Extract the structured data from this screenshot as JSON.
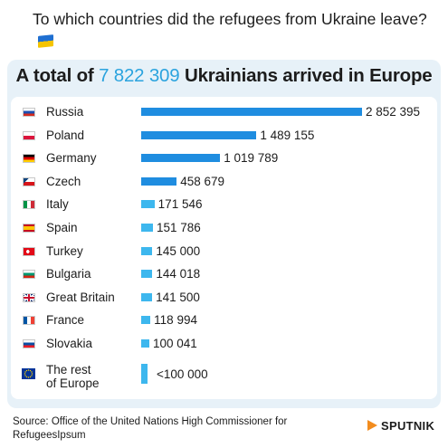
{
  "header": {
    "question": "To which countries did the refugees from Ukraine leave?"
  },
  "summary": {
    "prefix": "A total of",
    "total": "7 822 309",
    "suffix": "Ukrainians arrived in Europe"
  },
  "chart_data": {
    "type": "bar",
    "orientation": "horizontal",
    "categories": [
      "Russia",
      "Poland",
      "Germany",
      "Czech",
      "Italy",
      "Spain",
      "Turkey",
      "Bulgaria",
      "Great Britain",
      "France",
      "Slovakia",
      "The rest of Europe"
    ],
    "values": [
      2852395,
      1489155,
      1019789,
      458679,
      171546,
      151786,
      145000,
      144018,
      141500,
      118994,
      100041,
      100000
    ],
    "value_labels": [
      "2 852 395",
      "1 489 155",
      "1 019 789",
      "458 679",
      "171 546",
      "151 786",
      "145 000",
      "144 018",
      "141 500",
      "118 994",
      "100 041",
      "<100 000"
    ],
    "series": [
      {
        "values": [
          2852395,
          1489155,
          1019789,
          458679,
          171546,
          151786,
          145000,
          144018,
          141500,
          118994,
          100041,
          100000
        ]
      }
    ],
    "xlim": [
      0,
      2852395
    ],
    "grid": false,
    "legend": "none",
    "colors": {
      "large_bars": "#1f8de0",
      "small_bars": "#3db7ee"
    },
    "flags": [
      "russia-flag",
      "poland-flag",
      "germany-flag",
      "czech-flag",
      "italy-flag",
      "spain-flag",
      "turkey-flag",
      "bulgaria-flag",
      "great-britain-flag",
      "france-flag",
      "slovakia-flag",
      "europe-flag"
    ]
  },
  "footer": {
    "source": "Source: Office of the United Nations High Commissioner for RefugeesIpsum",
    "brand": "SPUTNIK"
  },
  "colors": {
    "accent": "#2ba3de",
    "panel_background": "#e7f1f8",
    "brand_orange": "#f28c1e"
  }
}
